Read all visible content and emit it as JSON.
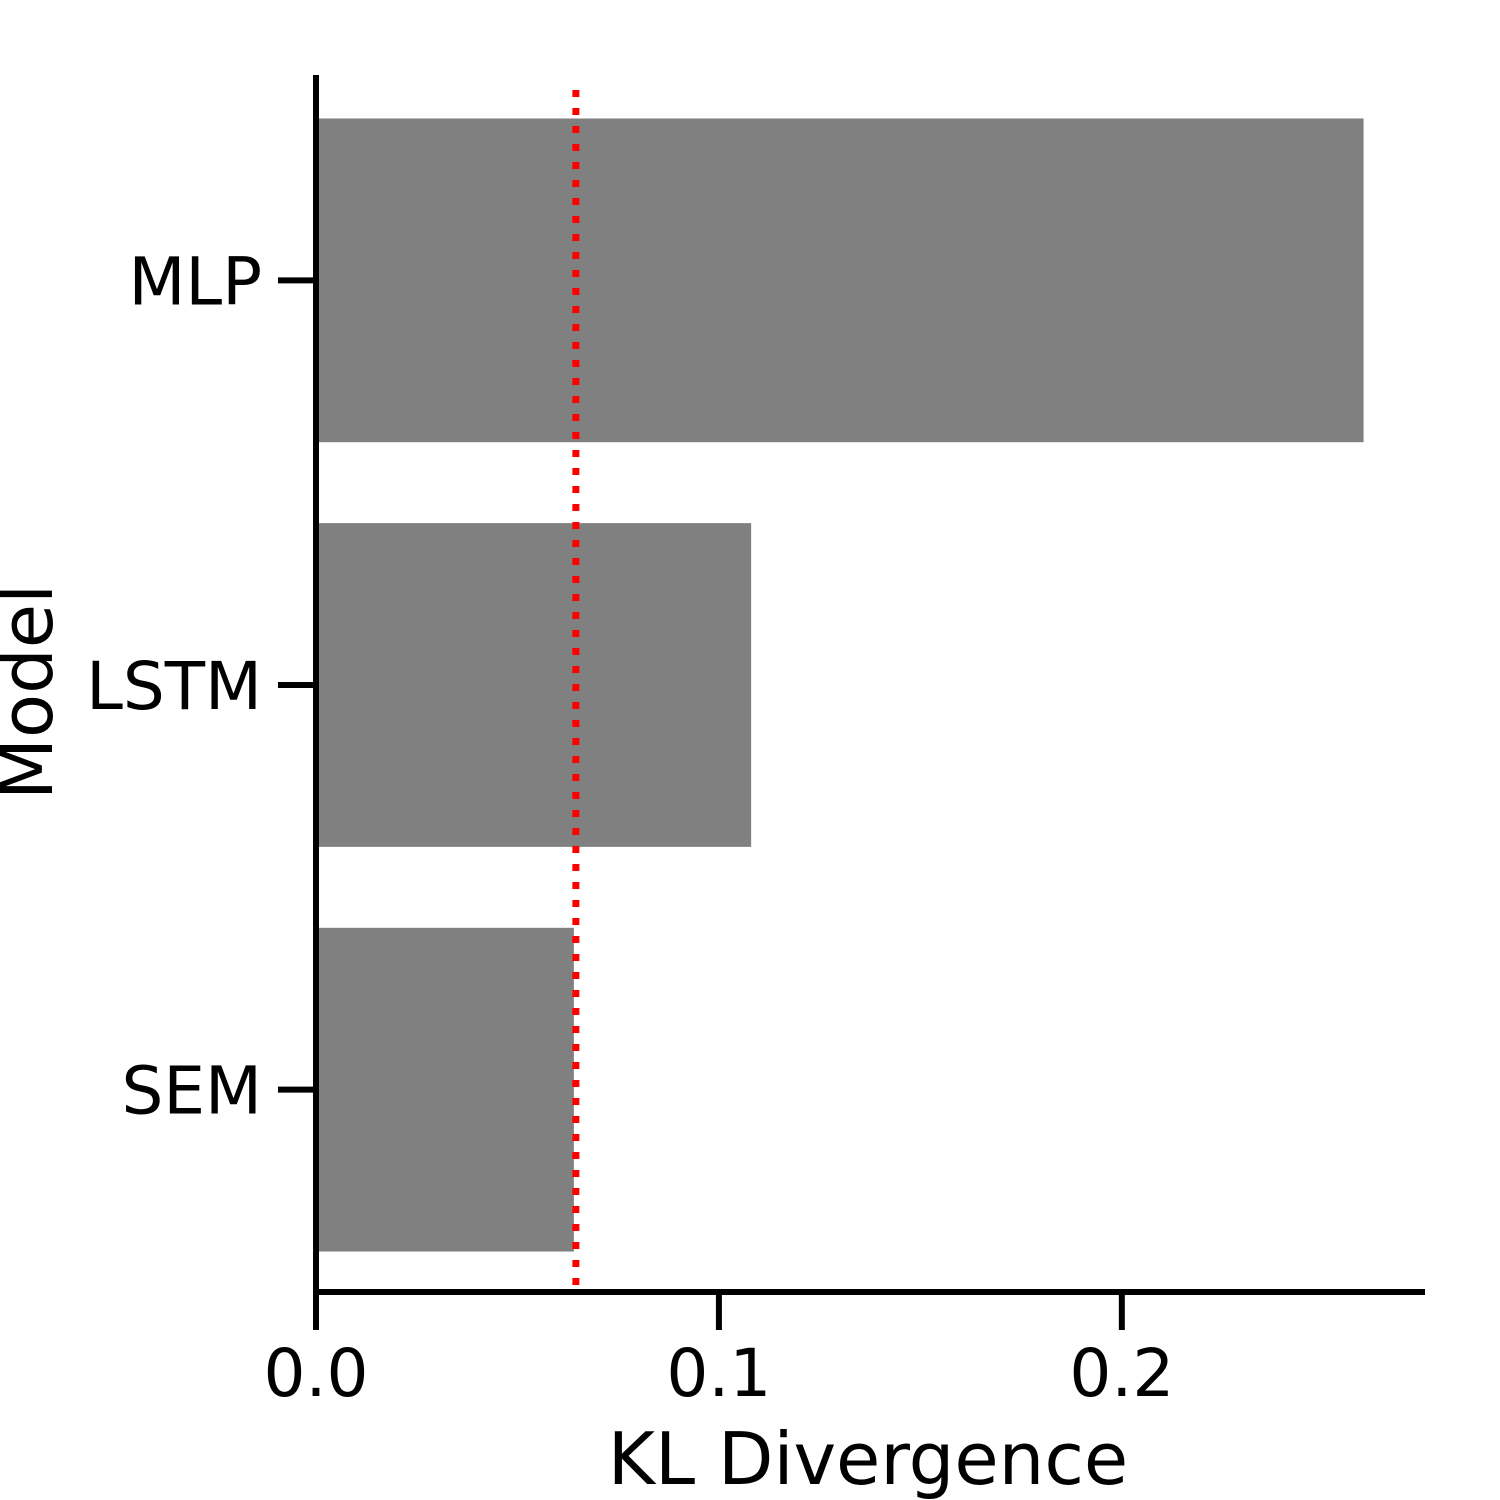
{
  "chart_data": {
    "type": "bar",
    "orientation": "horizontal",
    "categories": [
      "MLP",
      "LSTM",
      "SEM"
    ],
    "values": [
      0.26,
      0.108,
      0.064
    ],
    "reference_line": {
      "x": 0.0645,
      "style": "dotted"
    },
    "xlabel": "KL Divergence",
    "ylabel": "Model",
    "xlim": [
      0.0,
      0.2745
    ],
    "xticks": [
      0.0,
      0.1,
      0.2
    ],
    "xtick_labels": [
      "0.0",
      "0.1",
      "0.2"
    ],
    "grid": false,
    "legend": "none"
  },
  "colors": {
    "bar": "#808080",
    "reference_line": "#ff0000",
    "axis": "#000000",
    "background": "#ffffff"
  }
}
